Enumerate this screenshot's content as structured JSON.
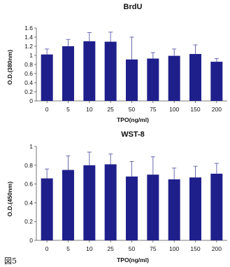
{
  "figure_label": "図5",
  "chart_data": [
    {
      "type": "bar",
      "title": "BrdU",
      "xlabel": "TPO(ng/ml)",
      "ylabel": "O.D.(380nm)",
      "categories": [
        "0",
        "5",
        "10",
        "25",
        "50",
        "75",
        "100",
        "150",
        "200"
      ],
      "values": [
        1.02,
        1.2,
        1.31,
        1.3,
        0.91,
        0.93,
        0.99,
        1.03,
        0.86
      ],
      "errors": [
        0.12,
        0.15,
        0.19,
        0.21,
        0.49,
        0.13,
        0.15,
        0.2,
        0.07
      ],
      "ylim": [
        0,
        1.6
      ],
      "yticks": [
        "0",
        "0.2",
        "0.4",
        "0.6",
        "0.8",
        "1",
        "1.2",
        "1.4",
        "1.6"
      ],
      "bar_color": "#1f1f8c",
      "grid": false
    },
    {
      "type": "bar",
      "title": "WST-8",
      "xlabel": "TPO(ng/ml)",
      "ylabel": "O.D.(450nm)",
      "categories": [
        "0",
        "5",
        "10",
        "25",
        "50",
        "75",
        "100",
        "150",
        "200"
      ],
      "values": [
        0.66,
        0.75,
        0.8,
        0.81,
        0.68,
        0.7,
        0.65,
        0.67,
        0.71
      ],
      "errors": [
        0.1,
        0.15,
        0.14,
        0.11,
        0.16,
        0.19,
        0.12,
        0.12,
        0.11
      ],
      "ylim": [
        0,
        1
      ],
      "yticks": [
        "0",
        "0.2",
        "0.4",
        "0.6",
        "0.8",
        "1"
      ],
      "bar_color": "#1f1f8c",
      "grid": false
    }
  ]
}
